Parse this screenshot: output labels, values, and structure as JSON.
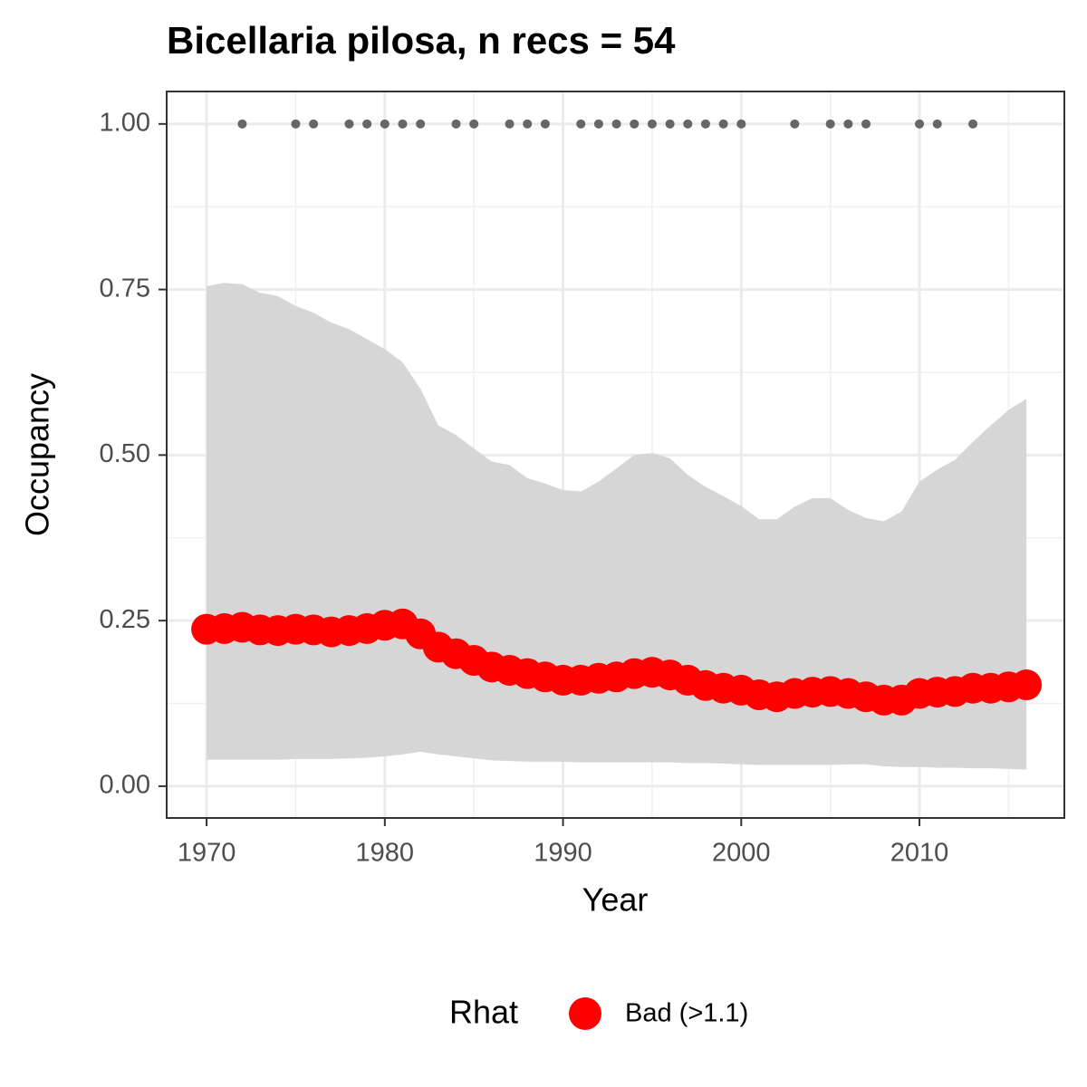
{
  "chart_data": {
    "type": "line",
    "title": "Bicellaria pilosa, n recs = 54",
    "x_label": "Year",
    "y_label": "Occupancy",
    "legend_title": "Rhat",
    "x": [
      1970,
      1971,
      1972,
      1973,
      1974,
      1975,
      1976,
      1977,
      1978,
      1979,
      1980,
      1981,
      1982,
      1983,
      1984,
      1985,
      1986,
      1987,
      1988,
      1989,
      1990,
      1991,
      1992,
      1993,
      1994,
      1995,
      1996,
      1997,
      1998,
      1999,
      2000,
      2001,
      2002,
      2003,
      2004,
      2005,
      2006,
      2007,
      2008,
      2009,
      2010,
      2011,
      2012,
      2013,
      2014,
      2015,
      2016
    ],
    "series": [
      {
        "name": "Bad (>1.1)",
        "color": "#ff0000",
        "values": [
          0.237,
          0.238,
          0.24,
          0.236,
          0.235,
          0.237,
          0.236,
          0.233,
          0.235,
          0.238,
          0.243,
          0.245,
          0.23,
          0.21,
          0.2,
          0.19,
          0.18,
          0.175,
          0.17,
          0.165,
          0.16,
          0.16,
          0.163,
          0.165,
          0.17,
          0.172,
          0.168,
          0.16,
          0.152,
          0.148,
          0.145,
          0.138,
          0.135,
          0.14,
          0.142,
          0.143,
          0.14,
          0.135,
          0.13,
          0.13,
          0.14,
          0.142,
          0.143,
          0.148,
          0.148,
          0.15,
          0.153
        ]
      }
    ],
    "ribbon": {
      "color": "#d6d6d6",
      "upper": [
        0.755,
        0.76,
        0.758,
        0.745,
        0.74,
        0.725,
        0.715,
        0.7,
        0.69,
        0.675,
        0.66,
        0.64,
        0.6,
        0.545,
        0.53,
        0.51,
        0.49,
        0.485,
        0.465,
        0.457,
        0.447,
        0.445,
        0.46,
        0.48,
        0.5,
        0.503,
        0.495,
        0.47,
        0.452,
        0.438,
        0.423,
        0.403,
        0.403,
        0.422,
        0.435,
        0.435,
        0.417,
        0.405,
        0.4,
        0.415,
        0.46,
        0.478,
        0.493,
        0.52,
        0.545,
        0.568,
        0.585
      ],
      "lower": [
        0.04,
        0.04,
        0.04,
        0.04,
        0.04,
        0.041,
        0.041,
        0.041,
        0.042,
        0.043,
        0.045,
        0.048,
        0.052,
        0.048,
        0.045,
        0.042,
        0.039,
        0.038,
        0.037,
        0.037,
        0.037,
        0.036,
        0.036,
        0.036,
        0.036,
        0.036,
        0.036,
        0.035,
        0.035,
        0.034,
        0.033,
        0.032,
        0.032,
        0.032,
        0.032,
        0.032,
        0.033,
        0.033,
        0.03,
        0.029,
        0.029,
        0.028,
        0.028,
        0.027,
        0.027,
        0.026,
        0.025
      ]
    },
    "records": {
      "color": "#666666",
      "x": [
        1972,
        1975,
        1976,
        1978,
        1979,
        1980,
        1981,
        1982,
        1984,
        1985,
        1987,
        1988,
        1989,
        1991,
        1992,
        1993,
        1994,
        1995,
        1996,
        1997,
        1998,
        1999,
        2000,
        2003,
        2005,
        2006,
        2007,
        2010,
        2011,
        2013
      ],
      "values": [
        1,
        1,
        1,
        1,
        1,
        1,
        1,
        1,
        1,
        1,
        1,
        1,
        1,
        1,
        1,
        1,
        1,
        1,
        1,
        1,
        1,
        1,
        1,
        1,
        1,
        1,
        1,
        1,
        1,
        1
      ]
    },
    "xlim": [
      1967.76,
      2018.13
    ],
    "ylim": [
      -0.048,
      1.049
    ],
    "xticks": [
      1970,
      1980,
      1990,
      2000,
      2010
    ],
    "yticks": [
      {
        "value": 0,
        "label": "0.00"
      },
      {
        "value": 0.25,
        "label": "0.25"
      },
      {
        "value": 0.5,
        "label": "0.50"
      },
      {
        "value": 0.75,
        "label": "0.75"
      },
      {
        "value": 1,
        "label": "1.00"
      }
    ],
    "x_minor_ticks": [
      1975,
      1985,
      1995,
      2005,
      2015
    ],
    "y_minor_ticks": [
      0.125,
      0.375,
      0.625,
      0.875
    ],
    "grid": true
  }
}
